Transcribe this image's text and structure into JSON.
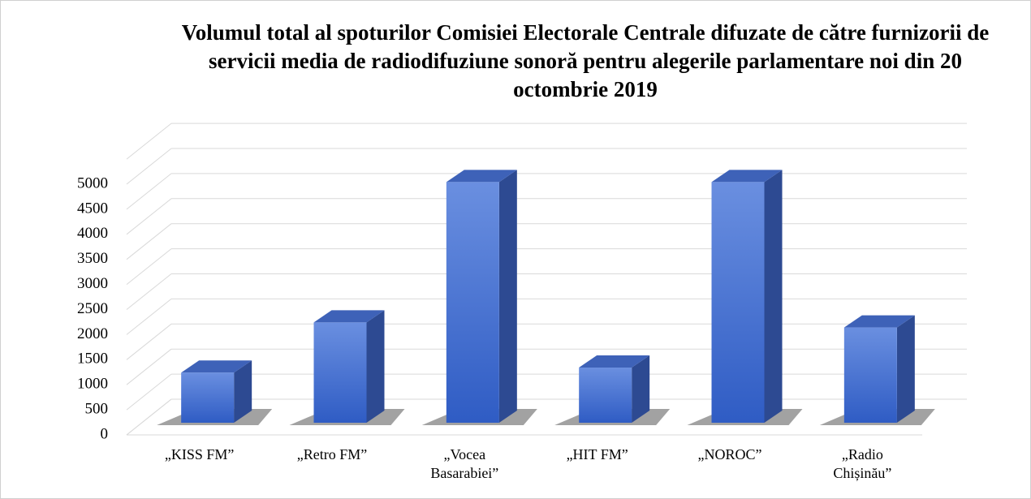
{
  "chart_data": {
    "type": "bar3d",
    "title": "Volumul total al spoturilor Comisiei Electorale Centrale difuzate de către furnizorii de servicii media de radiodifuziune sonoră pentru alegerile parlamentare noi din 20 octombrie 2019",
    "categories": [
      "„KISS FM”",
      "„Retro FM”",
      "„Vocea Basarabiei”",
      "„HIT FM”",
      "„NOROC”",
      "„Radio Chișinău”"
    ],
    "values": [
      1000,
      2000,
      4800,
      1100,
      4800,
      1900
    ],
    "color": "#4a74d6",
    "ylim": [
      0,
      5500
    ],
    "yticks": [
      0,
      500,
      1000,
      1500,
      2000,
      2500,
      3000,
      3500,
      4000,
      4500,
      5000
    ],
    "grid": true
  }
}
